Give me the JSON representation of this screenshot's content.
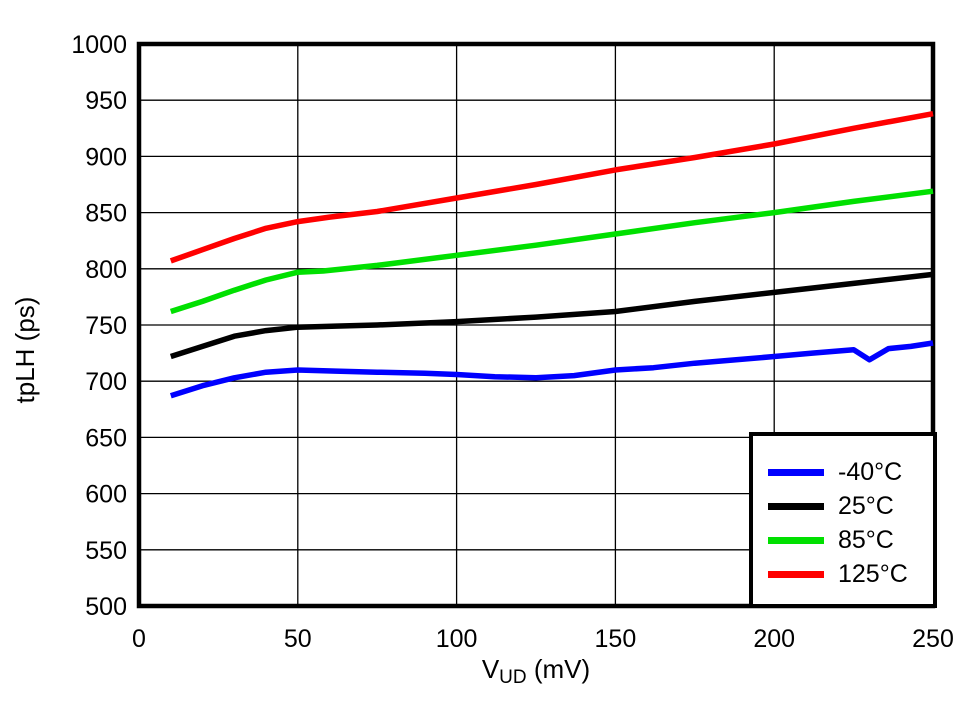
{
  "chart_data": {
    "type": "line",
    "title": "",
    "ylabel": "tpLH (ps)",
    "xlabel": {
      "main": "V",
      "sub": "UD",
      "unit": " (mV)"
    },
    "xlim": [
      0,
      250
    ],
    "ylim": [
      500,
      1000
    ],
    "xticks": [
      0,
      50,
      100,
      150,
      200,
      250
    ],
    "yticks": [
      500,
      550,
      600,
      650,
      700,
      750,
      800,
      850,
      900,
      950,
      1000
    ],
    "grid": true,
    "legend_position": "bottom-right",
    "series": [
      {
        "name": "-40°C",
        "color": "#0000ff",
        "points": [
          [
            10,
            687
          ],
          [
            20,
            696
          ],
          [
            30,
            703
          ],
          [
            40,
            708
          ],
          [
            50,
            710
          ],
          [
            62,
            709
          ],
          [
            75,
            708
          ],
          [
            90,
            707
          ],
          [
            100,
            706
          ],
          [
            112,
            704
          ],
          [
            125,
            703
          ],
          [
            137,
            705
          ],
          [
            150,
            710
          ],
          [
            162,
            712
          ],
          [
            175,
            716
          ],
          [
            188,
            719
          ],
          [
            200,
            722
          ],
          [
            212,
            725
          ],
          [
            225,
            728
          ],
          [
            230,
            719
          ],
          [
            236,
            729
          ],
          [
            243,
            731
          ],
          [
            250,
            734
          ]
        ]
      },
      {
        "name": "25°C",
        "color": "#000000",
        "points": [
          [
            10,
            722
          ],
          [
            20,
            731
          ],
          [
            30,
            740
          ],
          [
            40,
            745
          ],
          [
            50,
            748
          ],
          [
            62,
            749
          ],
          [
            75,
            750
          ],
          [
            100,
            753
          ],
          [
            125,
            757
          ],
          [
            150,
            762
          ],
          [
            175,
            771
          ],
          [
            200,
            779
          ],
          [
            225,
            787
          ],
          [
            250,
            795
          ]
        ]
      },
      {
        "name": "85°C",
        "color": "#00e000",
        "points": [
          [
            10,
            762
          ],
          [
            20,
            771
          ],
          [
            30,
            781
          ],
          [
            40,
            790
          ],
          [
            50,
            797
          ],
          [
            58,
            798
          ],
          [
            75,
            803
          ],
          [
            100,
            812
          ],
          [
            125,
            821
          ],
          [
            150,
            831
          ],
          [
            175,
            841
          ],
          [
            200,
            850
          ],
          [
            225,
            860
          ],
          [
            250,
            869
          ]
        ]
      },
      {
        "name": "125°C",
        "color": "#ff0000",
        "points": [
          [
            10,
            807
          ],
          [
            20,
            817
          ],
          [
            30,
            827
          ],
          [
            40,
            836
          ],
          [
            50,
            842
          ],
          [
            60,
            846
          ],
          [
            75,
            851
          ],
          [
            100,
            863
          ],
          [
            125,
            875
          ],
          [
            150,
            888
          ],
          [
            175,
            899
          ],
          [
            200,
            911
          ],
          [
            225,
            925
          ],
          [
            250,
            938
          ]
        ]
      }
    ]
  }
}
